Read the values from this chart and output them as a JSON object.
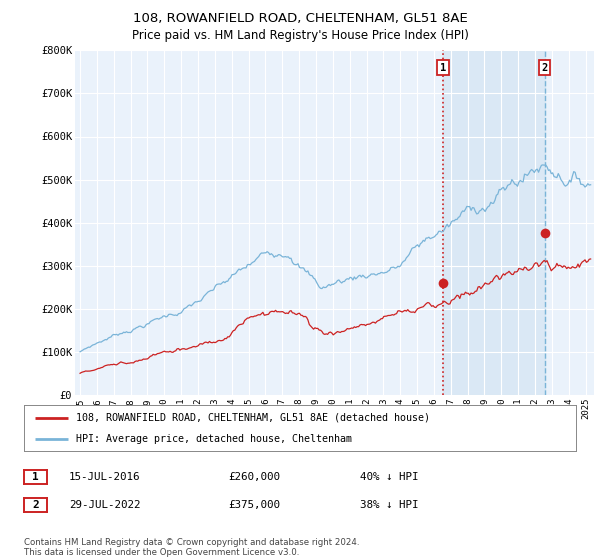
{
  "title": "108, ROWANFIELD ROAD, CHELTENHAM, GL51 8AE",
  "subtitle": "Price paid vs. HM Land Registry's House Price Index (HPI)",
  "ylabel_ticks": [
    "£0",
    "£100K",
    "£200K",
    "£300K",
    "£400K",
    "£500K",
    "£600K",
    "£700K",
    "£800K"
  ],
  "ytick_values": [
    0,
    100000,
    200000,
    300000,
    400000,
    500000,
    600000,
    700000,
    800000
  ],
  "ylim": [
    0,
    800000
  ],
  "xlim_start": 1994.7,
  "xlim_end": 2025.5,
  "hpi_color": "#7ab4d8",
  "price_color": "#cc2222",
  "vline1_color": "#cc2222",
  "vline1_style": ":",
  "vline2_color": "#7ab4d8",
  "vline2_style": "--",
  "shade_color": "#cce0f0",
  "shade_alpha": 0.5,
  "sale1_date": 2016.54,
  "sale1_price": 260000,
  "sale1_label": "1",
  "sale2_date": 2022.57,
  "sale2_price": 375000,
  "sale2_label": "2",
  "legend_line1": "108, ROWANFIELD ROAD, CHELTENHAM, GL51 8AE (detached house)",
  "legend_line2": "HPI: Average price, detached house, Cheltenham",
  "footer": "Contains HM Land Registry data © Crown copyright and database right 2024.\nThis data is licensed under the Open Government Licence v3.0.",
  "bg_chart": "#eaf2fb",
  "bg_white": "#ffffff",
  "grid_color": "#ffffff",
  "title_fontsize": 9.5,
  "subtitle_fontsize": 8.5
}
